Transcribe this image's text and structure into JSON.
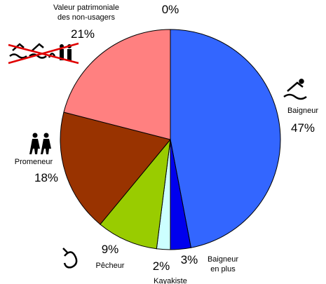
{
  "chart_data": {
    "type": "pie",
    "categories": [
      "Baigneur",
      "Baigneur\nen plus",
      "Kayakiste",
      "Pêcheur",
      "Promeneur",
      "Valeur patrimoniale\ndes non-usagers",
      null
    ],
    "values": [
      47,
      3,
      2,
      9,
      18,
      21,
      0
    ],
    "value_labels": [
      "47%",
      "3%",
      "2%",
      "9%",
      "18%",
      "21%",
      "0%"
    ],
    "colors": [
      "#3366ff",
      "#0000ee",
      "#ccffff",
      "#99cc00",
      "#993300",
      "#ff8080",
      "#ffffff"
    ]
  }
}
